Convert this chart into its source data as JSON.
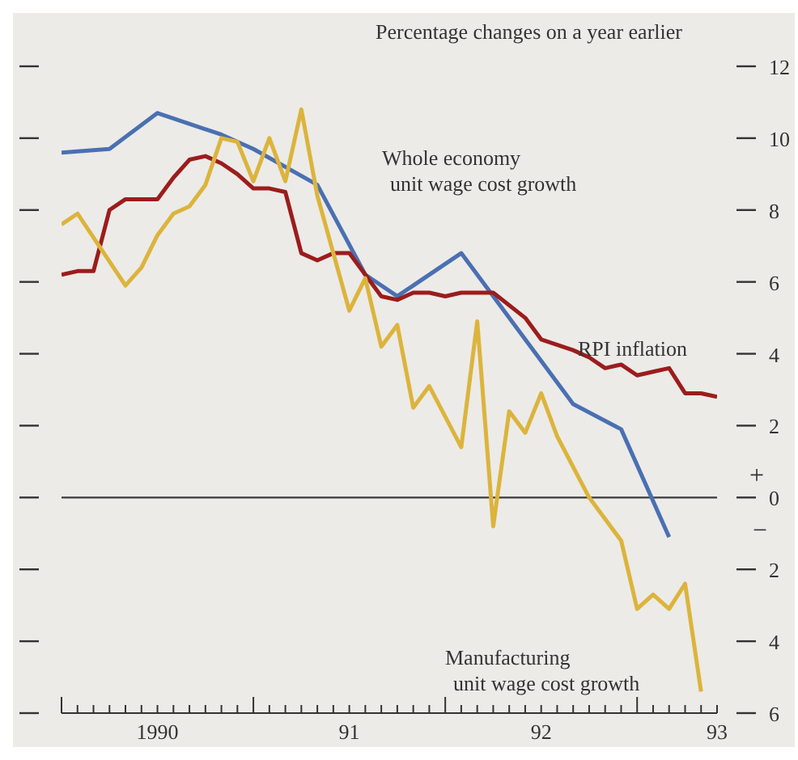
{
  "chart_data": {
    "type": "line",
    "ylabel": "Percentage changes on a year earlier",
    "annotations": [
      "+",
      "−"
    ],
    "legend": false,
    "xlim": [
      "1990-01",
      "1993-06"
    ],
    "ylim": [
      -6,
      12
    ],
    "yticks": [
      {
        "value": -6,
        "label": "6"
      },
      {
        "value": -4,
        "label": "4"
      },
      {
        "value": -2,
        "label": "2"
      },
      0,
      2,
      4,
      6,
      8,
      10,
      12
    ],
    "xticks": [
      {
        "value": "1990-01",
        "label": null
      },
      {
        "value": "1990-02",
        "label": null
      },
      {
        "value": "1990-03",
        "label": null
      },
      {
        "value": "1990-04",
        "label": null
      },
      {
        "value": "1990-05",
        "label": null
      },
      {
        "value": "1990-06",
        "label": null
      },
      {
        "value": "1990-07",
        "label": "1990"
      },
      {
        "value": "1990-08",
        "label": null
      },
      {
        "value": "1990-09",
        "label": null
      },
      {
        "value": "1990-10",
        "label": null
      },
      {
        "value": "1990-11",
        "label": null
      },
      {
        "value": "1990-12",
        "label": null
      },
      {
        "value": "1991-01",
        "label": null
      },
      {
        "value": "1991-02",
        "label": null
      },
      {
        "value": "1991-03",
        "label": null
      },
      {
        "value": "1991-04",
        "label": null
      },
      {
        "value": "1991-05",
        "label": null
      },
      {
        "value": "1991-06",
        "label": null
      },
      {
        "value": "1991-07",
        "label": "91"
      },
      {
        "value": "1991-08",
        "label": null
      },
      {
        "value": "1991-09",
        "label": null
      },
      {
        "value": "1991-10",
        "label": null
      },
      {
        "value": "1991-11",
        "label": null
      },
      {
        "value": "1991-12",
        "label": null
      },
      {
        "value": "1992-01",
        "label": null
      },
      {
        "value": "1992-02",
        "label": null
      },
      {
        "value": "1992-03",
        "label": null
      },
      {
        "value": "1992-04",
        "label": null
      },
      {
        "value": "1992-05",
        "label": null
      },
      {
        "value": "1992-06",
        "label": null
      },
      {
        "value": "1992-07",
        "label": "92"
      },
      {
        "value": "1992-08",
        "label": null
      },
      {
        "value": "1992-09",
        "label": null
      },
      {
        "value": "1992-10",
        "label": null
      },
      {
        "value": "1992-11",
        "label": null
      },
      {
        "value": "1992-12",
        "label": null
      },
      {
        "value": "1993-01",
        "label": null
      },
      {
        "value": "1993-02",
        "label": null
      },
      {
        "value": "1993-03",
        "label": null
      },
      {
        "value": "1993-04",
        "label": null
      },
      {
        "value": "1993-05",
        "label": null
      },
      {
        "value": "1993-06",
        "label": "93"
      }
    ],
    "ref_lines": [
      {
        "axis": "y",
        "value": 0,
        "color": "#3a3a3a"
      }
    ],
    "series": [
      {
        "name": "Whole economy\nunit wage cost growth",
        "color": "#4a70b2",
        "x": [
          "1990-01",
          "1990-04",
          "1990-07",
          "1990-11",
          "1991-01",
          "1991-05",
          "1991-08",
          "1991-10",
          "1992-02",
          "1992-09",
          "1992-12",
          "1993-03"
        ],
        "values": [
          9.6,
          9.7,
          10.7,
          10.1,
          9.7,
          8.7,
          6.2,
          5.6,
          6.8,
          2.6,
          1.9,
          -1.1
        ]
      },
      {
        "name": "RPI inflation",
        "color": "#9c1c1c",
        "x": [
          "1990-01",
          "1990-02",
          "1990-03",
          "1990-04",
          "1990-05",
          "1990-06",
          "1990-07",
          "1990-08",
          "1990-09",
          "1990-10",
          "1990-11",
          "1990-12",
          "1991-01",
          "1991-02",
          "1991-03",
          "1991-04",
          "1991-05",
          "1991-06",
          "1991-07",
          "1991-08",
          "1991-09",
          "1991-10",
          "1991-11",
          "1991-12",
          "1992-01",
          "1992-02",
          "1992-04",
          "1992-06",
          "1992-07",
          "1992-09",
          "1992-10",
          "1992-11",
          "1992-12",
          "1993-01",
          "1993-02",
          "1993-03",
          "1993-04",
          "1993-05",
          "1993-06"
        ],
        "values": [
          6.2,
          6.3,
          6.3,
          8.0,
          8.3,
          8.3,
          8.3,
          8.9,
          9.4,
          9.5,
          9.3,
          9.0,
          8.6,
          8.6,
          8.5,
          6.8,
          6.6,
          6.8,
          6.8,
          6.2,
          5.6,
          5.5,
          5.7,
          5.7,
          5.6,
          5.7,
          5.7,
          5.0,
          4.4,
          4.1,
          3.9,
          3.6,
          3.7,
          3.4,
          3.5,
          3.6,
          2.9,
          2.9,
          2.8
        ]
      },
      {
        "name": "Manufacturing\nunit wage cost growth",
        "color": "#dcb43c",
        "x": [
          "1990-01",
          "1990-02",
          "1990-05",
          "1990-06",
          "1990-07",
          "1990-08",
          "1990-09",
          "1990-10",
          "1990-11",
          "1990-12",
          "1991-01",
          "1991-02",
          "1991-03",
          "1991-04",
          "1991-05",
          "1991-07",
          "1991-08",
          "1991-09",
          "1991-10",
          "1991-11",
          "1991-12",
          "1992-02",
          "1992-03",
          "1992-04",
          "1992-05",
          "1992-06",
          "1992-07",
          "1992-08",
          "1992-10",
          "1992-12",
          "1993-01",
          "1993-02",
          "1993-03",
          "1993-04",
          "1993-05"
        ],
        "values": [
          7.6,
          7.9,
          5.9,
          6.4,
          7.3,
          7.9,
          8.1,
          8.7,
          10.0,
          9.9,
          8.8,
          10.0,
          8.8,
          10.8,
          8.4,
          5.2,
          6.1,
          4.2,
          4.8,
          2.5,
          3.1,
          1.4,
          4.9,
          -0.8,
          2.4,
          1.8,
          2.9,
          1.7,
          0.0,
          -1.2,
          -3.1,
          -2.7,
          -3.1,
          -2.4,
          -5.4
        ]
      }
    ]
  }
}
